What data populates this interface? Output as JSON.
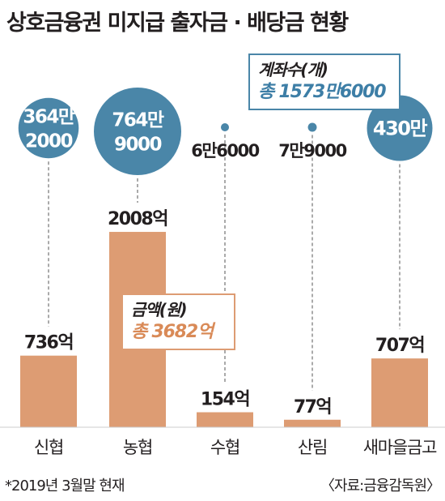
{
  "title": "상호금융권 미지급 출자금 · 배당금 현황",
  "legend": {
    "accounts_title": "계좌수(개)",
    "accounts_total": "총 1573만6000",
    "amount_title": "금액(원)",
    "amount_total": "총 3682억"
  },
  "footnote": "*2019년 3월말 현재",
  "source": "〈자료:금융감독원〉",
  "colors": {
    "bar": "#dd9c73",
    "bubble": "#4a86a8",
    "accent_text_blue": "#3d7ea6",
    "accent_text_orange": "#d98a57",
    "baseline": "#cccccc"
  },
  "chart_data": {
    "type": "bar",
    "categories": [
      "신협",
      "농협",
      "수협",
      "산림",
      "새마을금고"
    ],
    "series": [
      {
        "name": "금액(원)",
        "values": [
          736,
          2008,
          154,
          77,
          707
        ],
        "labels": [
          "736억",
          "2008억",
          "154억",
          "77억",
          "707억"
        ]
      },
      {
        "name": "계좌수(개)",
        "values": [
          3642000,
          7649000,
          66000,
          79000,
          4300000
        ],
        "labels": [
          [
            "364만",
            "2000"
          ],
          [
            "764만",
            "9000"
          ],
          [
            "6만6000"
          ],
          [
            "7만9000"
          ],
          [
            "430만"
          ]
        ]
      }
    ],
    "title": "상호금융권 미지급 출자금 · 배당금 현황",
    "xlabel": "",
    "ylabel": "",
    "ylim": [
      0,
      2100
    ]
  }
}
